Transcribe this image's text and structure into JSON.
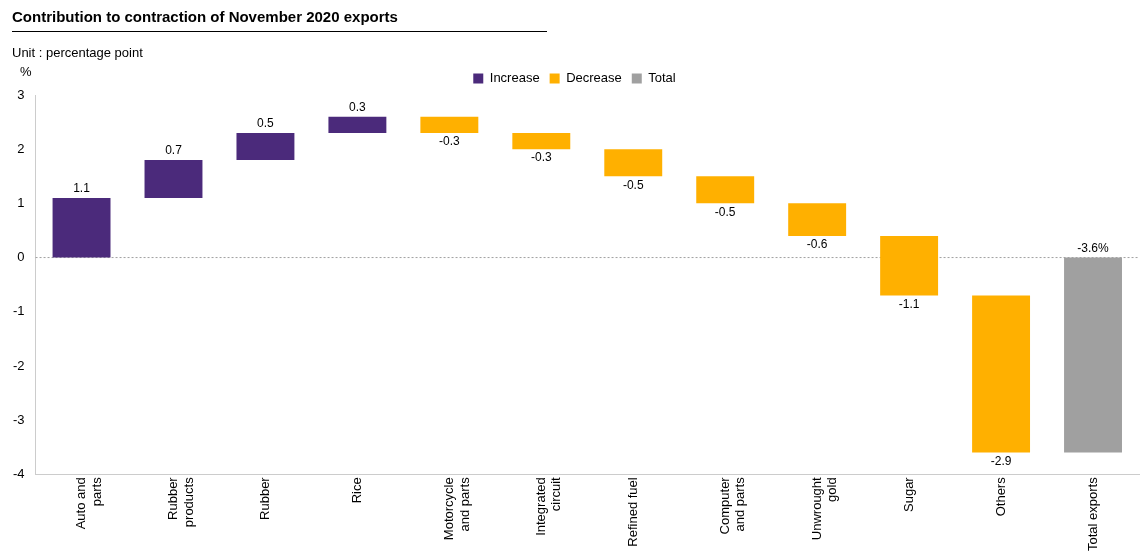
{
  "chart_data": {
    "type": "bar",
    "title": "Contribution to contraction of November 2020 exports",
    "subtitle": "Unit : percentage point",
    "ylabel": "%",
    "categories": [
      "Auto and parts",
      "Rubber products",
      "Rubber",
      "Rice",
      "Motorcycle and parts",
      "Integrated circuit",
      "Refined fuel",
      "Computer and parts",
      "Unwrought gold",
      "Sugar",
      "Others",
      "Total exports"
    ],
    "series": [
      {
        "name": "Increase",
        "color": "#4b2a7b",
        "values": [
          1.1,
          0.7,
          0.5,
          0.3,
          null,
          null,
          null,
          null,
          null,
          null,
          null,
          null
        ],
        "base": [
          0,
          1.1,
          1.8,
          2.3,
          null,
          null,
          null,
          null,
          null,
          null,
          null,
          null
        ],
        "value_labels": [
          "1.1",
          "0.7",
          "0.5",
          "0.3",
          null,
          null,
          null,
          null,
          null,
          null,
          null,
          null
        ]
      },
      {
        "name": "Decrease",
        "color": "#ffb000",
        "values": [
          null,
          null,
          null,
          null,
          -0.3,
          -0.3,
          -0.5,
          -0.5,
          -0.6,
          -1.1,
          -2.9,
          null
        ],
        "base": [
          null,
          null,
          null,
          null,
          2.6,
          2.3,
          2.0,
          1.5,
          1.0,
          0.4,
          -0.7,
          null
        ],
        "value_labels": [
          null,
          null,
          null,
          null,
          "-0.3",
          "-0.3",
          "-0.5",
          "-0.5",
          "-0.6",
          "-1.1",
          "-2.9",
          null
        ]
      },
      {
        "name": "Total",
        "color": "#a0a0a0",
        "values": [
          null,
          null,
          null,
          null,
          null,
          null,
          null,
          null,
          null,
          null,
          null,
          -3.6
        ],
        "base": [
          null,
          null,
          null,
          null,
          null,
          null,
          null,
          null,
          null,
          null,
          null,
          0
        ],
        "value_labels": [
          null,
          null,
          null,
          null,
          null,
          null,
          null,
          null,
          null,
          null,
          null,
          "-3.6%"
        ]
      }
    ],
    "ylim": [
      -4,
      3
    ],
    "yticks": [
      -4,
      -3,
      -2,
      -1,
      0,
      1,
      2,
      3
    ],
    "grid": false,
    "legend": "top",
    "ref_lines": [
      {
        "axis": "y",
        "value": 0,
        "color": "#a0a0a0",
        "line_style": "dotted"
      }
    ]
  }
}
